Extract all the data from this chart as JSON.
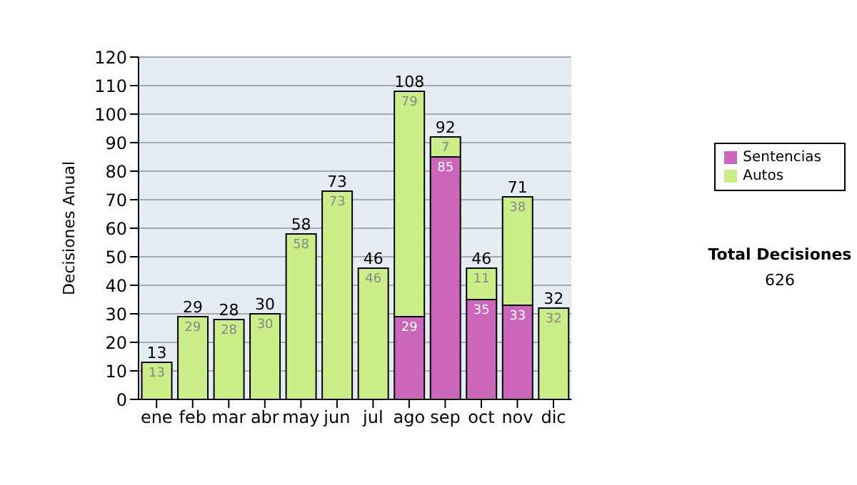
{
  "chart_data": {
    "type": "bar",
    "stacked": true,
    "ylabel": "Decisiones Anual",
    "categories": [
      "ene",
      "feb",
      "mar",
      "abr",
      "may",
      "jun",
      "jul",
      "ago",
      "sep",
      "oct",
      "nov",
      "dic"
    ],
    "series": [
      {
        "name": "Sentencias",
        "color": "#cc66bb",
        "values": [
          0,
          0,
          0,
          0,
          0,
          0,
          0,
          29,
          85,
          35,
          33,
          0
        ],
        "value_labels": [
          null,
          null,
          null,
          null,
          null,
          null,
          null,
          "29",
          "85",
          "35",
          "33",
          null
        ]
      },
      {
        "name": "Autos",
        "color": "#ccee88",
        "values": [
          13,
          29,
          28,
          30,
          58,
          73,
          46,
          79,
          7,
          11,
          38,
          32
        ],
        "value_labels": [
          "13",
          "29",
          "28",
          "30",
          "58",
          "73",
          "46",
          "79",
          "7",
          "11",
          "38",
          "32"
        ]
      }
    ],
    "totals": [
      "13",
      "29",
      "28",
      "30",
      "58",
      "73",
      "46",
      "108",
      "92",
      "46",
      "71",
      "32"
    ],
    "ylim": [
      0,
      120
    ],
    "yticks": [
      0,
      10,
      20,
      30,
      40,
      50,
      60,
      70,
      80,
      90,
      100,
      110,
      120
    ],
    "grid": "y",
    "legend": "right",
    "annotations": [
      "Total Decisiones",
      "626"
    ]
  }
}
